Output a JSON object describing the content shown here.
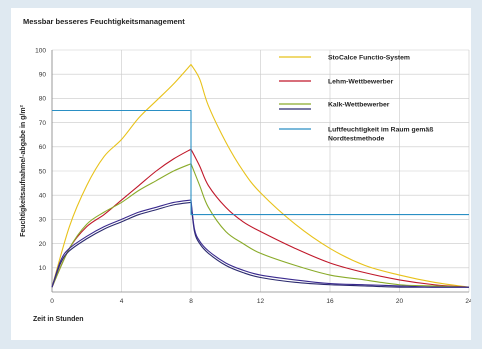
{
  "chart_data": {
    "type": "line",
    "title": "Messbar besseres Feuchtigkeitsmanagement",
    "xlabel": "Zeit in Stunden",
    "ylabel": "Feuchtigkeitsaufnahme/-abgabe in g/m²",
    "xlim": [
      0,
      24
    ],
    "ylim": [
      0,
      100
    ],
    "xticks": [
      0,
      4,
      8,
      12,
      16,
      20,
      24
    ],
    "yticks": [
      10,
      20,
      30,
      40,
      50,
      60,
      70,
      80,
      90,
      100
    ],
    "grid": true,
    "legend_position": "top-right",
    "legend": [
      {
        "label": "StoCalce Functio-System",
        "colors": [
          "#e8c21a"
        ]
      },
      {
        "label": "Lehm-Wettbewerber",
        "colors": [
          "#c0182a"
        ]
      },
      {
        "label": "Kalk-Wettbewerber",
        "colors": [
          "#8aab2a",
          "#2b2a6e"
        ]
      },
      {
        "label": "Luftfeuchtigkeit im Raum gemäß Nordtestmethode",
        "colors": [
          "#2a8fc4"
        ]
      }
    ],
    "series": [
      {
        "name": "StoCalce Functio-System",
        "color": "#e8c21a",
        "x": [
          0,
          1,
          2,
          3,
          4,
          5,
          6,
          7,
          8,
          8.5,
          9,
          10,
          11,
          12,
          14,
          16,
          18,
          20,
          22,
          24
        ],
        "y": [
          2,
          27,
          44,
          56,
          63,
          72,
          79,
          86,
          94,
          88,
          77,
          62,
          50,
          41,
          28,
          18,
          11,
          7,
          4,
          2
        ]
      },
      {
        "name": "Lehm-Wettbewerber",
        "color": "#c0182a",
        "x": [
          0,
          1,
          2,
          3,
          4,
          5,
          6,
          7,
          8,
          8.5,
          9,
          10,
          11,
          12,
          14,
          16,
          18,
          20,
          22,
          24
        ],
        "y": [
          2,
          18,
          27,
          32,
          38,
          44,
          50,
          55,
          59,
          52,
          44,
          35,
          29,
          25,
          18,
          12,
          8,
          5,
          3,
          2
        ]
      },
      {
        "name": "Kalk-Wettbewerber",
        "color": "#8aab2a",
        "x": [
          0,
          1,
          2,
          3,
          4,
          5,
          6,
          7,
          8,
          8.5,
          9,
          10,
          11,
          12,
          14,
          16,
          18,
          20,
          22,
          24
        ],
        "y": [
          2,
          18,
          28,
          33,
          37,
          42,
          46,
          50,
          53,
          44,
          35,
          25,
          20,
          16,
          11,
          7,
          5,
          3,
          2.5,
          2
        ]
      },
      {
        "name": "Kalk-Wettbewerber",
        "color": "#2b2a6e",
        "x": [
          0,
          0.5,
          1,
          2,
          3,
          4,
          5,
          6,
          7,
          8,
          8.2,
          8.5,
          9,
          10,
          11,
          12,
          14,
          16,
          18,
          20,
          22,
          24
        ],
        "y": [
          2,
          12,
          17,
          22,
          26,
          29,
          32,
          34,
          36,
          37,
          25,
          20,
          16,
          11,
          8,
          6,
          4,
          3,
          2.5,
          2,
          2,
          2
        ]
      },
      {
        "name": "Kalk-Wettbewerber",
        "color": "#3a2a8e",
        "x": [
          0,
          0.5,
          1,
          2,
          3,
          4,
          5,
          6,
          7,
          8,
          8.2,
          8.5,
          9,
          10,
          11,
          12,
          14,
          16,
          18,
          20,
          22,
          24
        ],
        "y": [
          2,
          13,
          18,
          23,
          27,
          30,
          33,
          35,
          37,
          38,
          26,
          21,
          17,
          12,
          9,
          7,
          5,
          3.5,
          3,
          2.5,
          2,
          2
        ]
      },
      {
        "name": "Luftfeuchtigkeit im Raum gemäß Nordtestmethode",
        "color": "#2a8fc4",
        "x": [
          0,
          8,
          8,
          24
        ],
        "y": [
          75,
          75,
          32,
          32
        ]
      }
    ]
  }
}
